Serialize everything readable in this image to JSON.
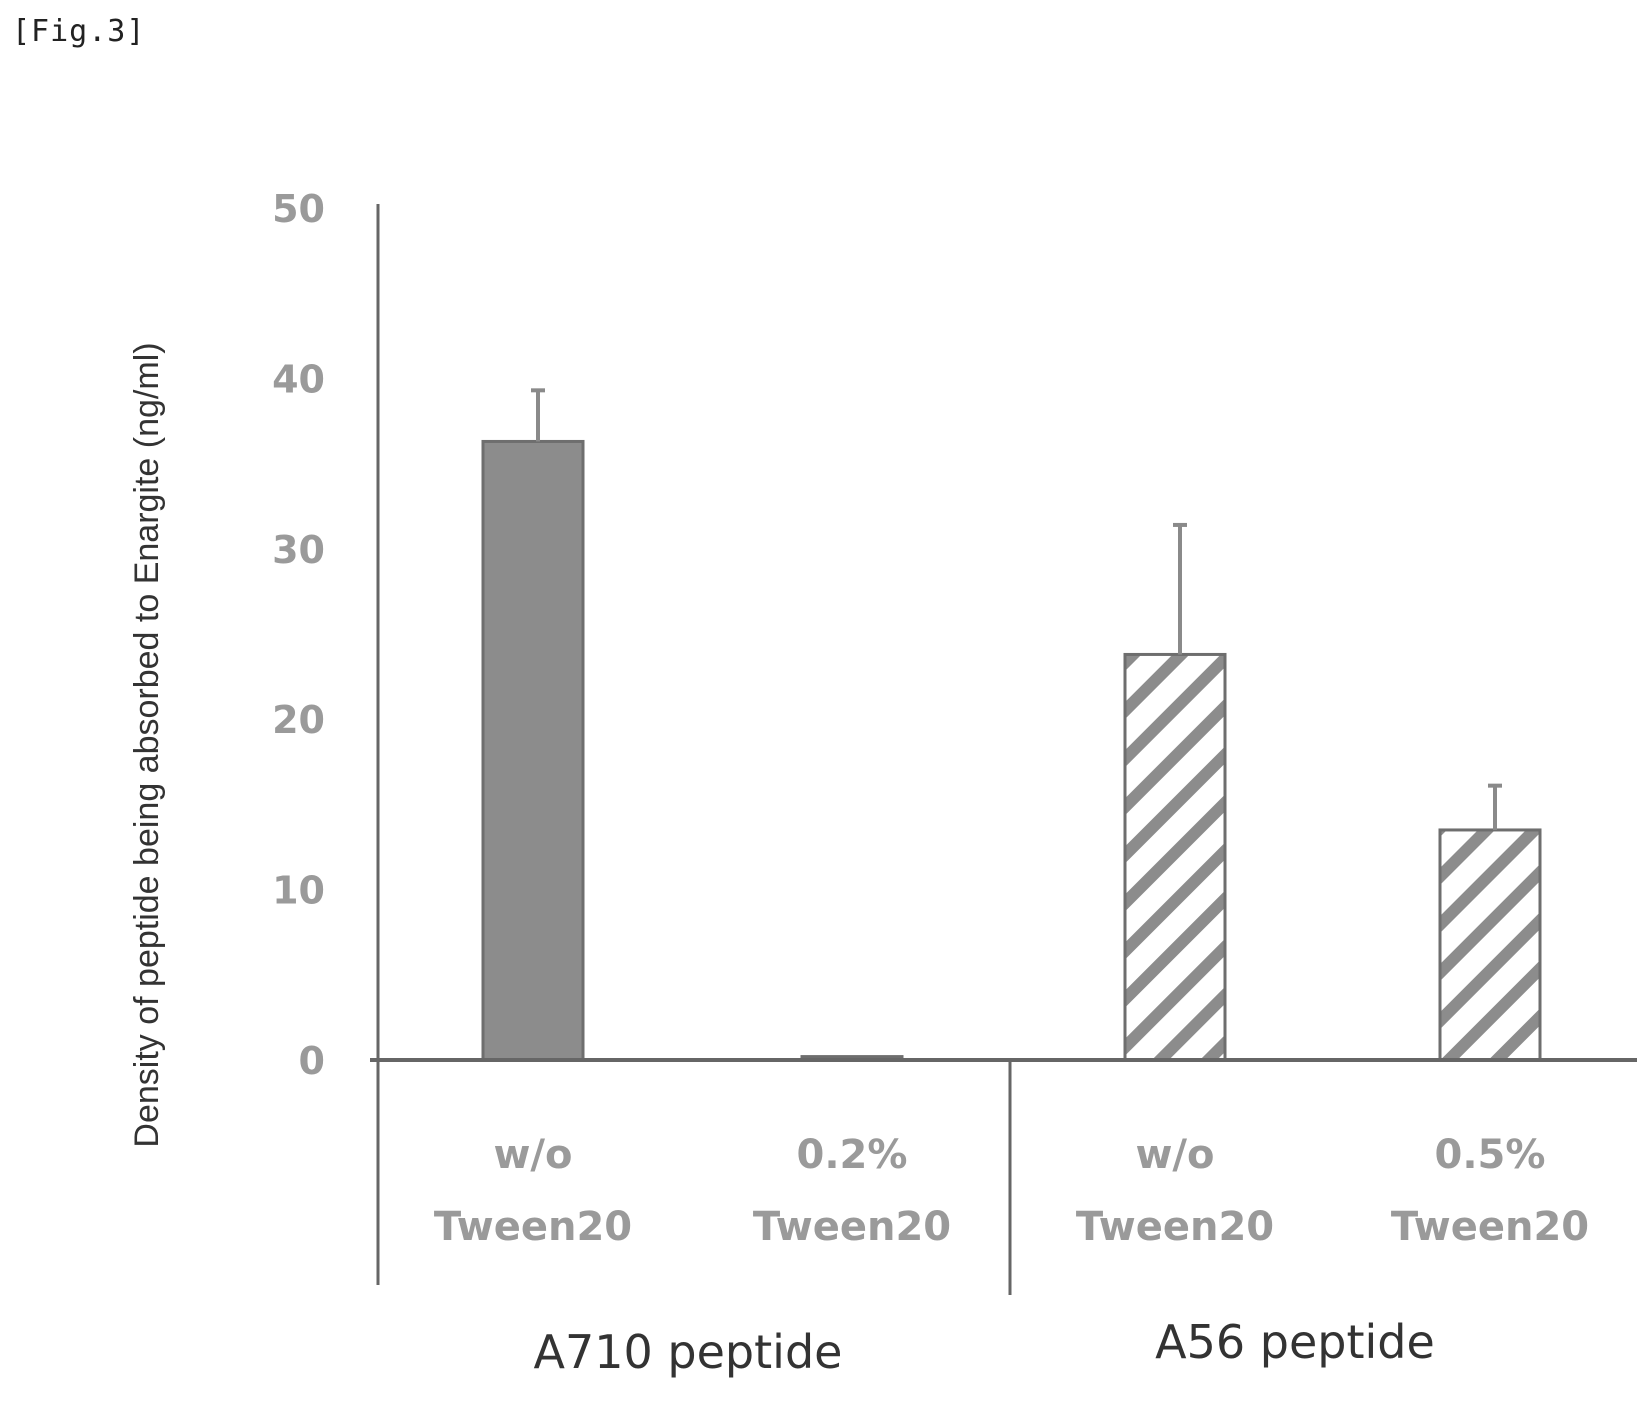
{
  "figure_label": "[Fig.3]",
  "chart_data": {
    "type": "bar",
    "title": "",
    "ylabel": "Density of peptide being absorbed to Enargite (ng/ml)",
    "xlabel": "",
    "ylim": [
      0,
      50
    ],
    "yticks": [
      0,
      10,
      20,
      30,
      40,
      50
    ],
    "grid": false,
    "categories": [
      {
        "group": "A710 peptide",
        "line1": "w/o",
        "line2": "Tween20",
        "value": 36.3,
        "error": 3.0,
        "fill": "solid"
      },
      {
        "group": "A710 peptide",
        "line1": "0.2%",
        "line2": "Tween20",
        "value": 0.2,
        "error": 0,
        "fill": "solid"
      },
      {
        "group": "A56 peptide",
        "line1": "w/o",
        "line2": "Tween20",
        "value": 23.8,
        "error": 7.6,
        "fill": "hatched"
      },
      {
        "group": "A56 peptide",
        "line1": "0.5%",
        "line2": "Tween20",
        "value": 13.5,
        "error": 2.6,
        "fill": "hatched"
      }
    ],
    "groups": [
      "A710 peptide",
      "A56 peptide"
    ],
    "colors": {
      "solid_bar": "#8c8c8c",
      "hatch": "#8c8c8c",
      "axis": "#666666"
    }
  }
}
